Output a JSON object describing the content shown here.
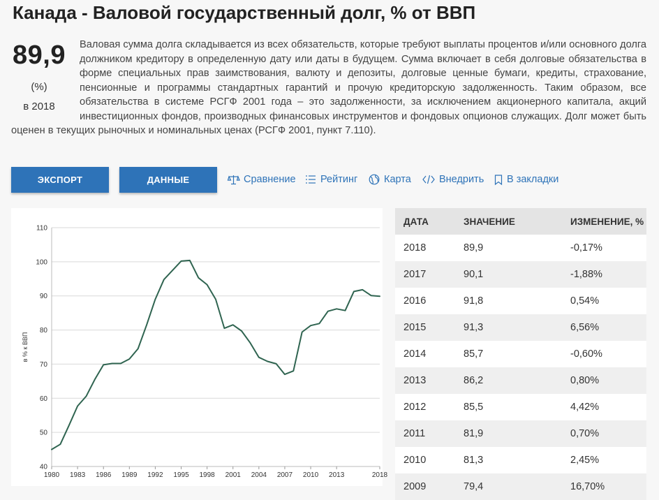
{
  "page": {
    "title": "Канада - Валовой государственный долг, % от ВВП",
    "headline_value": "89,9",
    "headline_unit": "(%)",
    "headline_year": "в 2018",
    "description": "Валовая сумма долга складывается из всех обязательств, которые требуют выплаты процентов и/или основного долга должником кредитору в определенную дату или даты в будущем. Сумма включает в себя долговые обязательства в форме специальных прав заимствования, валюту и депозиты, долговые ценные бумаги, кредиты, страхование, пенсионные и программы стандартных гарантий и прочую кредиторскую задолженность. Таким образом, все обязательства в системе РСГФ 2001 года – это задолженности, за исключением акционерного капитала, акций инвестиционных фондов, производных финансовых инструментов и фондовых опционов служащих. Долг может быть оценен в текущих рыночных и номинальных ценах (РСГФ 2001, пункт 7.110)."
  },
  "toolbar": {
    "export_label": "ЭКСПОРТ",
    "data_label": "ДАННЫЕ",
    "links": [
      {
        "label": "Сравнение",
        "icon": "scales-icon"
      },
      {
        "label": "Рейтинг",
        "icon": "list-icon"
      },
      {
        "label": "Карта",
        "icon": "globe-icon"
      },
      {
        "label": "Внедрить",
        "icon": "code-icon"
      },
      {
        "label": "В закладки",
        "icon": "bookmark-icon"
      }
    ]
  },
  "colors": {
    "accent": "#2e73b8",
    "line": "#2f6450",
    "grid": "#d9d9d9"
  },
  "table": {
    "headers": [
      "ДАТА",
      "ЗНАЧЕНИЕ",
      "ИЗМЕНЕНИЕ, %"
    ],
    "rows": [
      [
        "2018",
        "89,9",
        "-0,17%"
      ],
      [
        "2017",
        "90,1",
        "-1,88%"
      ],
      [
        "2016",
        "91,8",
        "0,54%"
      ],
      [
        "2015",
        "91,3",
        "6,56%"
      ],
      [
        "2014",
        "85,7",
        "-0,60%"
      ],
      [
        "2013",
        "86,2",
        "0,80%"
      ],
      [
        "2012",
        "85,5",
        "4,42%"
      ],
      [
        "2011",
        "81,9",
        "0,70%"
      ],
      [
        "2010",
        "81,3",
        "2,45%"
      ],
      [
        "2009",
        "79,4",
        "16,70%"
      ]
    ]
  },
  "chart_data": {
    "type": "line",
    "title": "",
    "xlabel": "",
    "ylabel": "в % к ВВП",
    "ylim": [
      40,
      110
    ],
    "xlim": [
      1980,
      2018
    ],
    "yticks": [
      40,
      50,
      60,
      70,
      80,
      90,
      100,
      110
    ],
    "xticks": [
      1980,
      1983,
      1986,
      1989,
      1992,
      1995,
      1998,
      2001,
      2004,
      2007,
      2010,
      2013,
      2018
    ],
    "grid": true,
    "legend": "none",
    "series": [
      {
        "x": [
          1980,
          1981,
          1982,
          1983,
          1984,
          1985,
          1986,
          1987,
          1988,
          1989,
          1990,
          1991,
          1992,
          1993,
          1994,
          1995,
          1996,
          1997,
          1998,
          1999,
          2000,
          2001,
          2002,
          2003,
          2004,
          2005,
          2006,
          2007,
          2008,
          2009,
          2010,
          2011,
          2012,
          2013,
          2014,
          2015,
          2016,
          2017,
          2018
        ],
        "values": [
          45.0,
          46.5,
          52.0,
          57.7,
          60.6,
          65.5,
          69.8,
          70.2,
          70.2,
          71.5,
          74.5,
          81.5,
          89.0,
          94.8,
          97.5,
          100.2,
          100.4,
          95.3,
          93.3,
          89.0,
          80.5,
          81.5,
          79.7,
          76.2,
          72.0,
          70.8,
          70.1,
          67.0,
          68.0,
          79.4,
          81.3,
          81.9,
          85.5,
          86.2,
          85.7,
          91.3,
          91.8,
          90.1,
          89.9
        ]
      }
    ]
  }
}
